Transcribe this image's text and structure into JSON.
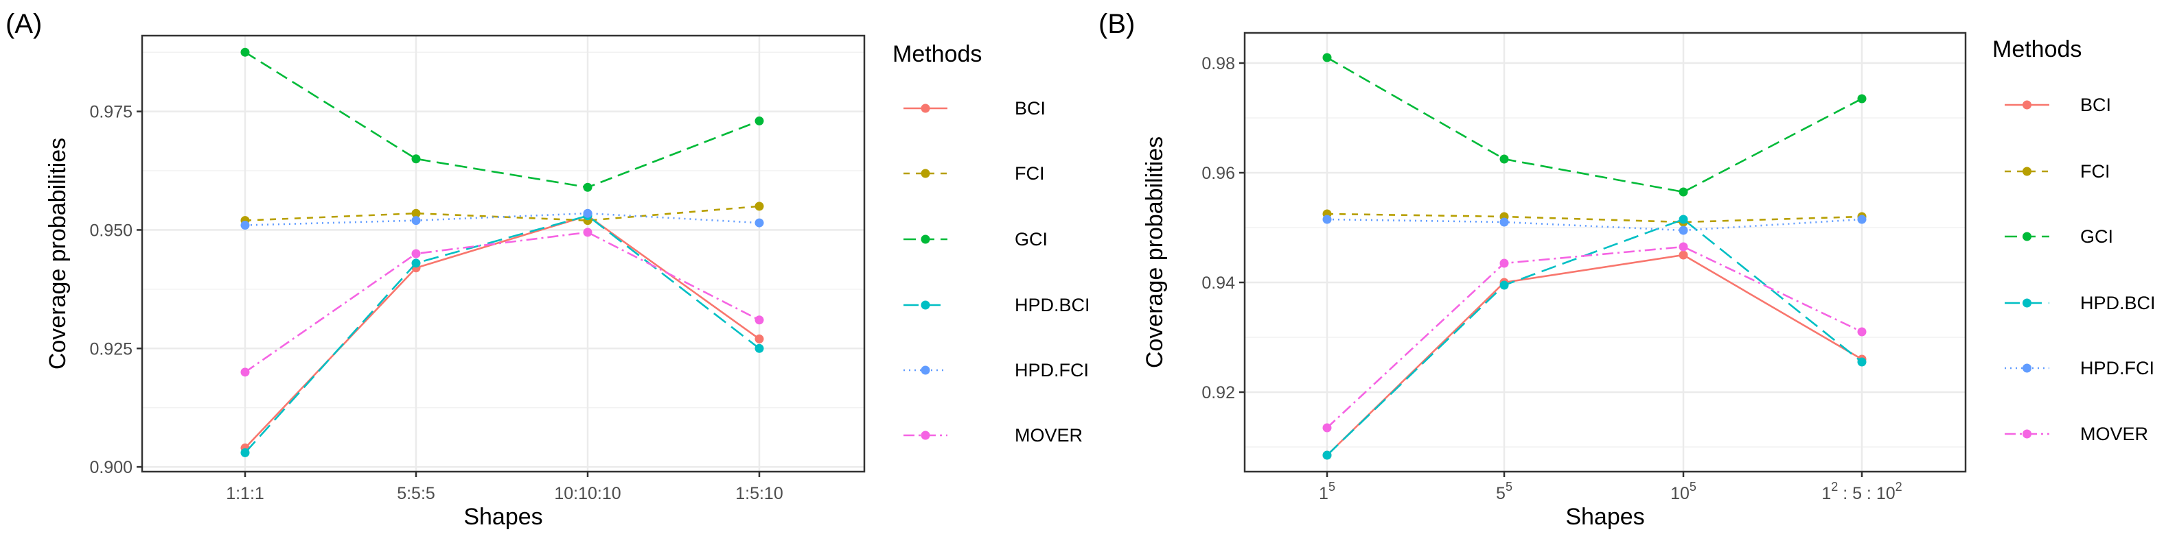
{
  "chart_data": [
    {
      "panel": "(A)",
      "type": "line",
      "xlabel": "Shapes",
      "ylabel": "Coverage probabilities",
      "categories": [
        "1:1:1",
        "5:5:5",
        "10:10:10",
        "1:5:10"
      ],
      "ylim": [
        0.899,
        0.991
      ],
      "yticks": [
        0.9,
        0.925,
        0.95,
        0.975
      ],
      "ytick_labels": [
        "0.900",
        "0.925",
        "0.950",
        "0.975"
      ],
      "series": [
        {
          "name": "BCI",
          "values": [
            0.904,
            0.942,
            0.953,
            0.927
          ]
        },
        {
          "name": "FCI",
          "values": [
            0.952,
            0.9535,
            0.952,
            0.955
          ]
        },
        {
          "name": "GCI",
          "values": [
            0.9875,
            0.965,
            0.959,
            0.973
          ]
        },
        {
          "name": "HPD.BCI",
          "values": [
            0.903,
            0.943,
            0.953,
            0.925
          ]
        },
        {
          "name": "HPD.FCI",
          "values": [
            0.951,
            0.952,
            0.9535,
            0.9515
          ]
        },
        {
          "name": "MOVER",
          "values": [
            0.92,
            0.945,
            0.9495,
            0.931
          ]
        }
      ],
      "legend_title": "Methods"
    },
    {
      "panel": "(B)",
      "type": "line",
      "xlabel": "Shapes",
      "ylabel": "Coverage probabilities",
      "categories": [
        {
          "base": "1",
          "sup": "5"
        },
        {
          "base": "5",
          "sup": "5"
        },
        {
          "base": "10",
          "sup": "5"
        },
        {
          "base": "1",
          "sup": "2",
          "mid": " : 5 : 10",
          "sup2": "2"
        }
      ],
      "ylim": [
        0.9055,
        0.9855
      ],
      "yticks": [
        0.92,
        0.94,
        0.96,
        0.98
      ],
      "ytick_labels": [
        "0.92",
        "0.94",
        "0.96",
        "0.98"
      ],
      "series": [
        {
          "name": "BCI",
          "values": [
            0.9085,
            0.94,
            0.945,
            0.926
          ]
        },
        {
          "name": "FCI",
          "values": [
            0.9525,
            0.952,
            0.951,
            0.952
          ]
        },
        {
          "name": "GCI",
          "values": [
            0.981,
            0.9625,
            0.9565,
            0.9735
          ]
        },
        {
          "name": "HPD.BCI",
          "values": [
            0.9085,
            0.9395,
            0.9515,
            0.9255
          ]
        },
        {
          "name": "HPD.FCI",
          "values": [
            0.9515,
            0.951,
            0.9495,
            0.9515
          ]
        },
        {
          "name": "MOVER",
          "values": [
            0.9135,
            0.9435,
            0.9465,
            0.931
          ]
        }
      ],
      "legend_title": "Methods"
    }
  ],
  "series_styles": {
    "BCI": {
      "color": "#F8766D",
      "dash": "none"
    },
    "FCI": {
      "color": "#B79F00",
      "dash": "9,9"
    },
    "GCI": {
      "color": "#00BA38",
      "dash": "18,9"
    },
    "HPD.BCI": {
      "color": "#00BFC4",
      "dash": "22,10"
    },
    "HPD.FCI": {
      "color": "#619CFF",
      "dash": "2,6"
    },
    "MOVER": {
      "color": "#F564E3",
      "dash": "16,6,3,6"
    }
  }
}
